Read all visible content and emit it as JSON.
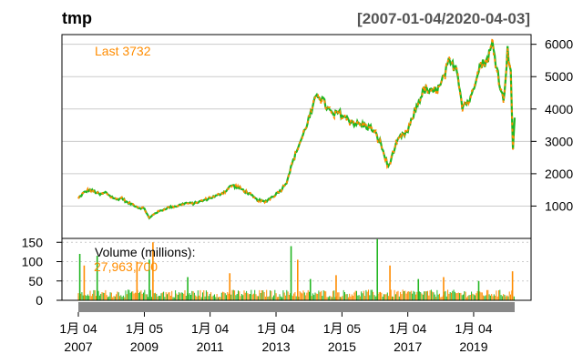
{
  "chart_data": {
    "type": "candlestick",
    "title": "tmp",
    "date_range": "[2007-01-04/2020-04-03]",
    "last_label": "Last 3732",
    "volume_label": "Volume (millions):",
    "volume_value": "27,963,700",
    "price_axis": {
      "ticks": [
        1000,
        2000,
        3000,
        4000,
        5000,
        6000
      ],
      "labels": [
        "1000",
        "2000",
        "3000",
        "4000",
        "5000",
        "6000"
      ],
      "range": [
        0,
        6300
      ],
      "position": "right"
    },
    "volume_axis": {
      "ticks": [
        0,
        50,
        100,
        150
      ],
      "labels": [
        "0",
        "50",
        "100",
        "150"
      ],
      "range": [
        0,
        160
      ],
      "position": "left"
    },
    "x_ticks": [
      {
        "line1": "1月 04",
        "line2": "2007",
        "date": "2007-01-04"
      },
      {
        "line1": "1月 05",
        "line2": "2009",
        "date": "2009-01-05"
      },
      {
        "line1": "1月 04",
        "line2": "2011",
        "date": "2011-01-04"
      },
      {
        "line1": "1月 04",
        "line2": "2013",
        "date": "2013-01-04"
      },
      {
        "line1": "1月 05",
        "line2": "2015",
        "date": "2015-01-05"
      },
      {
        "line1": "1月 04",
        "line2": "2017",
        "date": "2017-01-04"
      },
      {
        "line1": "1月 04",
        "line2": "2019",
        "date": "2019-01-04"
      }
    ],
    "x_range": [
      "2007-01-04",
      "2020-04-03"
    ],
    "grid": true,
    "price_series": {
      "name": "price",
      "points": [
        {
          "date": "2007-01-04",
          "value": 1230
        },
        {
          "date": "2007-03-01",
          "value": 1400
        },
        {
          "date": "2007-05-01",
          "value": 1500
        },
        {
          "date": "2007-07-01",
          "value": 1450
        },
        {
          "date": "2007-09-01",
          "value": 1350
        },
        {
          "date": "2007-11-01",
          "value": 1420
        },
        {
          "date": "2008-01-01",
          "value": 1300
        },
        {
          "date": "2008-03-01",
          "value": 1200
        },
        {
          "date": "2008-05-01",
          "value": 1250
        },
        {
          "date": "2008-07-01",
          "value": 1100
        },
        {
          "date": "2008-09-01",
          "value": 1050
        },
        {
          "date": "2008-11-01",
          "value": 950
        },
        {
          "date": "2009-01-05",
          "value": 920
        },
        {
          "date": "2009-03-01",
          "value": 620
        },
        {
          "date": "2009-05-01",
          "value": 780
        },
        {
          "date": "2009-07-01",
          "value": 850
        },
        {
          "date": "2009-10-01",
          "value": 960
        },
        {
          "date": "2010-01-01",
          "value": 1000
        },
        {
          "date": "2010-04-01",
          "value": 1090
        },
        {
          "date": "2010-07-01",
          "value": 1080
        },
        {
          "date": "2010-10-01",
          "value": 1150
        },
        {
          "date": "2011-01-04",
          "value": 1250
        },
        {
          "date": "2011-04-01",
          "value": 1330
        },
        {
          "date": "2011-07-01",
          "value": 1480
        },
        {
          "date": "2011-09-01",
          "value": 1650
        },
        {
          "date": "2011-12-01",
          "value": 1550
        },
        {
          "date": "2012-03-01",
          "value": 1400
        },
        {
          "date": "2012-06-01",
          "value": 1200
        },
        {
          "date": "2012-09-01",
          "value": 1130
        },
        {
          "date": "2012-12-01",
          "value": 1300
        },
        {
          "date": "2013-03-01",
          "value": 1500
        },
        {
          "date": "2013-05-01",
          "value": 1750
        },
        {
          "date": "2013-07-01",
          "value": 2300
        },
        {
          "date": "2013-09-01",
          "value": 2800
        },
        {
          "date": "2013-11-01",
          "value": 3200
        },
        {
          "date": "2014-01-01",
          "value": 3700
        },
        {
          "date": "2014-02-15",
          "value": 4000
        },
        {
          "date": "2014-04-01",
          "value": 4500
        },
        {
          "date": "2014-06-01",
          "value": 4300
        },
        {
          "date": "2014-08-01",
          "value": 4000
        },
        {
          "date": "2014-10-01",
          "value": 3800
        },
        {
          "date": "2014-12-01",
          "value": 3900
        },
        {
          "date": "2015-03-01",
          "value": 3700
        },
        {
          "date": "2015-06-01",
          "value": 3550
        },
        {
          "date": "2015-09-01",
          "value": 3500
        },
        {
          "date": "2015-12-01",
          "value": 3400
        },
        {
          "date": "2016-03-01",
          "value": 3000
        },
        {
          "date": "2016-06-01",
          "value": 2200
        },
        {
          "date": "2016-08-01",
          "value": 2700
        },
        {
          "date": "2016-10-01",
          "value": 3100
        },
        {
          "date": "2017-01-04",
          "value": 3300
        },
        {
          "date": "2017-04-01",
          "value": 4000
        },
        {
          "date": "2017-07-01",
          "value": 4600
        },
        {
          "date": "2017-10-01",
          "value": 4500
        },
        {
          "date": "2018-01-01",
          "value": 4700
        },
        {
          "date": "2018-04-01",
          "value": 5400
        },
        {
          "date": "2018-07-01",
          "value": 5300
        },
        {
          "date": "2018-09-01",
          "value": 4100
        },
        {
          "date": "2018-12-01",
          "value": 4300
        },
        {
          "date": "2019-03-01",
          "value": 5300
        },
        {
          "date": "2019-06-01",
          "value": 5500
        },
        {
          "date": "2019-08-01",
          "value": 6000
        },
        {
          "date": "2019-10-01",
          "value": 5100
        },
        {
          "date": "2019-12-01",
          "value": 4200
        },
        {
          "date": "2020-01-15",
          "value": 5800
        },
        {
          "date": "2020-02-20",
          "value": 5200
        },
        {
          "date": "2020-03-15",
          "value": 2700
        },
        {
          "date": "2020-04-03",
          "value": 3732
        }
      ]
    },
    "volume_series": {
      "name": "volume",
      "baseline_level": 22,
      "spikes": [
        {
          "date": "2007-01-20",
          "value": 120
        },
        {
          "date": "2007-03-10",
          "value": 90
        },
        {
          "date": "2007-08-01",
          "value": 115
        },
        {
          "date": "2008-10-15",
          "value": 100
        },
        {
          "date": "2009-03-01",
          "value": 105
        },
        {
          "date": "2009-04-10",
          "value": 150
        },
        {
          "date": "2010-05-01",
          "value": 60
        },
        {
          "date": "2011-08-10",
          "value": 70
        },
        {
          "date": "2013-06-20",
          "value": 140
        },
        {
          "date": "2013-09-01",
          "value": 105
        },
        {
          "date": "2014-01-20",
          "value": 55
        },
        {
          "date": "2014-11-01",
          "value": 65
        },
        {
          "date": "2016-02-01",
          "value": 158
        },
        {
          "date": "2016-06-20",
          "value": 90
        },
        {
          "date": "2017-05-01",
          "value": 55
        },
        {
          "date": "2018-02-05",
          "value": 60
        },
        {
          "date": "2019-03-01",
          "value": 50
        },
        {
          "date": "2020-03-10",
          "value": 75
        }
      ]
    },
    "colors": {
      "up": "#22b622",
      "down": "#ff8c00",
      "grid": "#cccccc",
      "last_text": "#ff8c00",
      "title": "#000000",
      "range_text": "#555555"
    }
  }
}
